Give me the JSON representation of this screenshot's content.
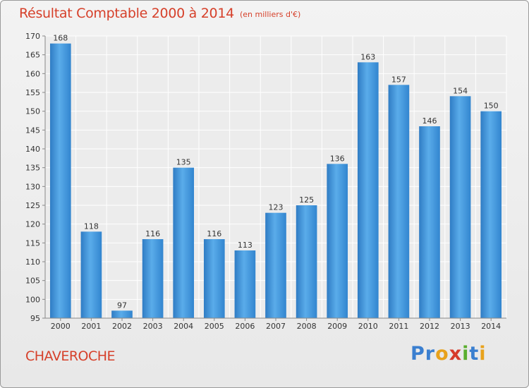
{
  "chart_data": {
    "type": "bar",
    "title": "Résultat Comptable 2000 à 2014",
    "subtitle": "(en milliers d'€)",
    "categories": [
      "2000",
      "2001",
      "2002",
      "2003",
      "2004",
      "2005",
      "2006",
      "2007",
      "2008",
      "2009",
      "2010",
      "2011",
      "2012",
      "2013",
      "2014"
    ],
    "values": [
      168,
      118,
      97,
      116,
      135,
      116,
      113,
      123,
      125,
      136,
      163,
      157,
      146,
      154,
      150
    ],
    "ylim": [
      95,
      170
    ],
    "yticks": [
      95,
      100,
      105,
      110,
      115,
      120,
      125,
      130,
      135,
      140,
      145,
      150,
      155,
      160,
      165,
      170
    ],
    "grid": true,
    "bar_color": "#3f8fd6",
    "xlabel": "",
    "ylabel": ""
  },
  "footer": {
    "commune": "CHAVEROCHE",
    "logo_letters": [
      "P",
      "r",
      "o",
      "x",
      "i",
      "t",
      "i"
    ],
    "logo_colors": [
      "#3a7fd0",
      "#3a7fd0",
      "#e8a21c",
      "#d63a2a",
      "#5aae2e",
      "#3a7fd0",
      "#e8a21c"
    ]
  }
}
